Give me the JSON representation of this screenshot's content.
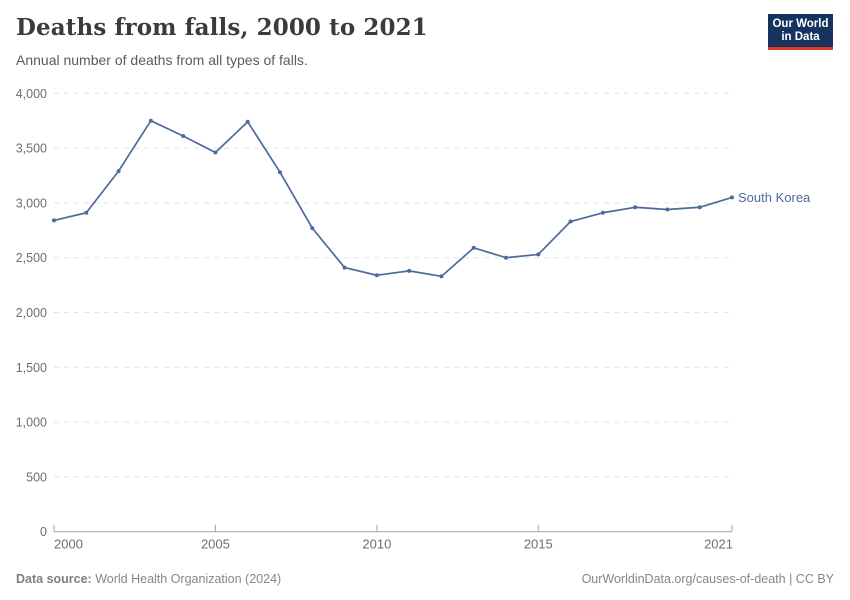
{
  "header": {
    "title": "Deaths from falls, 2000 to 2021",
    "subtitle": "Annual number of deaths from all types of falls.",
    "logo": {
      "line1": "Our World",
      "line2": "in Data"
    }
  },
  "chart_data": {
    "type": "line",
    "title": "Deaths from falls, 2000 to 2021",
    "xlabel": "",
    "ylabel": "",
    "x": [
      2000,
      2001,
      2002,
      2003,
      2004,
      2005,
      2006,
      2007,
      2008,
      2009,
      2010,
      2011,
      2012,
      2013,
      2014,
      2015,
      2016,
      2017,
      2018,
      2019,
      2020,
      2021
    ],
    "series": [
      {
        "name": "South Korea",
        "color": "#4C6A9C",
        "values": [
          2840,
          2910,
          3290,
          3750,
          3610,
          3460,
          3740,
          3280,
          2770,
          2410,
          2340,
          2380,
          2330,
          2590,
          2500,
          2530,
          2830,
          2910,
          2960,
          2940,
          2960,
          3050
        ]
      }
    ],
    "xlim": [
      2000,
      2021
    ],
    "ylim": [
      0,
      4000
    ],
    "yticks": [
      0,
      500,
      1000,
      1500,
      2000,
      2500,
      3000,
      3500,
      4000
    ],
    "ytick_labels": [
      "0",
      "500",
      "1,000",
      "1,500",
      "2,000",
      "2,500",
      "3,000",
      "3,500",
      "4,000"
    ],
    "xticks": [
      2000,
      2005,
      2010,
      2015,
      2021
    ],
    "xtick_labels": [
      "2000",
      "2005",
      "2010",
      "2015",
      "2021"
    ],
    "grid": "horizontal-dashed",
    "legend_position": "end-of-line-label"
  },
  "footer": {
    "datasource_label": "Data source:",
    "datasource_value": " World Health Organization (2024)",
    "license": "OurWorldinData.org/causes-of-death | CC BY"
  },
  "colors": {
    "line": "#4C6A9C",
    "grid": "#e2e2e2",
    "axis": "#a3a3a3",
    "axis_text": "#6e6e6e",
    "logo_bg": "#15335e",
    "logo_accent": "#e2362b"
  }
}
